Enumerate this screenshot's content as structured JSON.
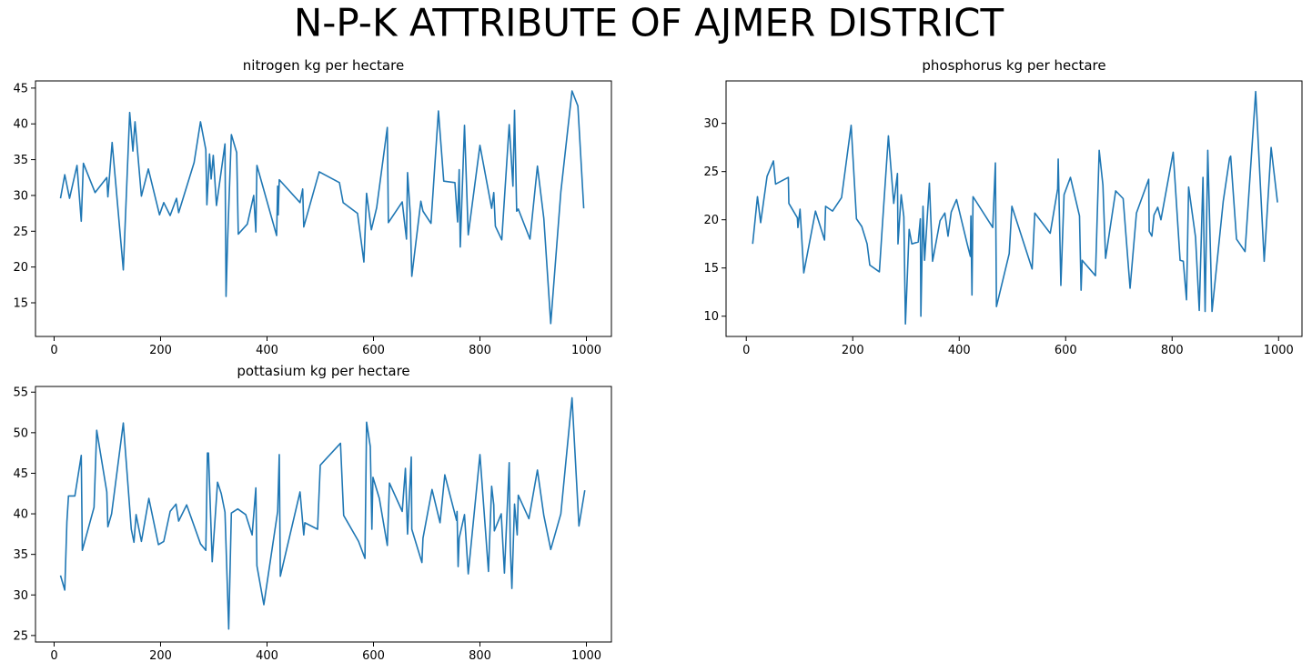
{
  "title": "N-P-K ATTRIBUTE OF AJMER DISTRICT",
  "title_color": "#ee0000",
  "chart_data": [
    {
      "type": "line",
      "title": "nitrogen kg per hectare",
      "color": "#1f77b4",
      "xlim": [
        -35,
        1047
      ],
      "xticks": [
        0,
        200,
        400,
        600,
        800,
        1000
      ],
      "ylim": [
        10.3,
        46.0
      ],
      "yticks": [
        15,
        20,
        25,
        30,
        35,
        40,
        45
      ],
      "x": [
        12,
        20,
        29,
        43,
        51,
        55,
        77,
        99,
        101,
        109,
        130,
        142,
        148,
        152,
        164,
        177,
        198,
        206,
        218,
        230,
        234,
        263,
        275,
        285,
        287,
        292,
        295,
        299,
        305,
        321,
        323,
        326,
        333,
        343,
        346,
        363,
        375,
        379,
        381,
        418,
        420,
        421,
        423,
        462,
        467,
        469,
        498,
        536,
        543,
        570,
        582,
        587,
        596,
        606,
        626,
        628,
        654,
        662,
        664,
        669,
        672,
        689,
        693,
        708,
        722,
        732,
        753,
        758,
        761,
        763,
        771,
        778,
        800,
        822,
        826,
        829,
        841,
        855,
        862,
        865,
        869,
        872,
        894,
        908,
        920,
        933,
        952,
        973,
        984,
        995
      ],
      "values": [
        29.6,
        32.9,
        29.6,
        34.2,
        26.4,
        34.5,
        30.4,
        32.5,
        29.8,
        37.4,
        19.6,
        41.6,
        36.2,
        40.3,
        29.9,
        33.7,
        27.3,
        29.0,
        27.2,
        29.6,
        27.6,
        34.6,
        40.3,
        36.4,
        28.7,
        35.8,
        32.3,
        35.6,
        28.6,
        37.2,
        15.9,
        23.9,
        38.5,
        36.0,
        24.6,
        26.0,
        30.0,
        24.9,
        34.2,
        24.4,
        31.3,
        27.3,
        32.2,
        29.0,
        30.9,
        25.6,
        33.3,
        31.8,
        29.0,
        27.5,
        20.7,
        30.3,
        25.2,
        28.3,
        39.5,
        26.2,
        29.1,
        23.9,
        33.2,
        27.5,
        18.7,
        29.2,
        27.8,
        26.1,
        41.8,
        32.0,
        31.8,
        26.3,
        33.6,
        22.8,
        39.8,
        24.5,
        37.0,
        28.2,
        30.4,
        25.7,
        23.8,
        39.9,
        31.3,
        41.9,
        27.8,
        28.1,
        23.9,
        34.1,
        26.8,
        12.1,
        30.5,
        44.6,
        42.5,
        28.2
      ]
    },
    {
      "type": "line",
      "title": "phosphorus kg per hectare",
      "color": "#1f77b4",
      "xlim": [
        -38,
        1044
      ],
      "xticks": [
        0,
        200,
        400,
        600,
        800,
        1000
      ],
      "ylim": [
        7.9,
        34.4
      ],
      "yticks": [
        10,
        15,
        20,
        25,
        30
      ],
      "x": [
        12,
        21,
        27,
        39,
        51,
        55,
        79,
        80,
        96,
        97,
        101,
        108,
        130,
        147,
        149,
        162,
        179,
        197,
        207,
        217,
        227,
        232,
        250,
        256,
        267,
        277,
        284,
        285,
        291,
        296,
        299,
        306,
        311,
        323,
        327,
        328,
        332,
        335,
        344,
        350,
        364,
        373,
        379,
        385,
        395,
        415,
        421,
        422,
        424,
        426,
        463,
        468,
        470,
        494,
        499,
        537,
        542,
        571,
        585,
        586,
        591,
        597,
        609,
        626,
        629,
        631,
        656,
        663,
        670,
        675,
        694,
        708,
        721,
        733,
        756,
        757,
        762,
        766,
        773,
        779,
        802,
        815,
        821,
        827,
        831,
        844,
        851,
        858,
        862,
        867,
        875,
        896,
        908,
        910,
        921,
        937,
        957,
        973,
        986,
        998
      ],
      "values": [
        17.5,
        22.4,
        19.7,
        24.5,
        26.1,
        23.7,
        24.4,
        21.7,
        20.2,
        19.2,
        21.1,
        14.5,
        20.9,
        17.9,
        21.4,
        20.9,
        22.3,
        29.8,
        20.1,
        19.3,
        17.5,
        15.3,
        14.6,
        19.7,
        28.7,
        21.7,
        24.8,
        17.5,
        22.6,
        20.3,
        9.2,
        19.0,
        17.5,
        17.7,
        20.1,
        10.0,
        21.4,
        15.8,
        23.8,
        15.7,
        19.9,
        20.7,
        18.3,
        20.8,
        22.1,
        17.5,
        16.2,
        20.4,
        12.2,
        22.4,
        19.2,
        25.9,
        11.0,
        16.5,
        21.4,
        14.9,
        20.7,
        18.6,
        23.2,
        26.3,
        13.2,
        22.6,
        24.4,
        20.4,
        12.7,
        15.8,
        14.2,
        27.2,
        23.6,
        16.0,
        23.0,
        22.2,
        12.9,
        20.7,
        24.2,
        18.8,
        18.3,
        20.5,
        21.3,
        20.0,
        27.0,
        15.8,
        15.7,
        11.7,
        23.4,
        18.2,
        10.6,
        24.4,
        10.5,
        27.2,
        10.5,
        21.9,
        26.4,
        26.6,
        18.0,
        16.7,
        33.3,
        15.7,
        27.5,
        21.8
      ]
    },
    {
      "type": "line",
      "title": "pottasium kg per hectare",
      "color": "#1f77b4",
      "xlim": [
        -35,
        1047
      ],
      "xticks": [
        0,
        200,
        400,
        600,
        800,
        1000
      ],
      "ylim": [
        24.2,
        55.7
      ],
      "yticks": [
        25,
        30,
        35,
        40,
        45,
        50,
        55
      ],
      "x": [
        12,
        20,
        24,
        27,
        39,
        51,
        53,
        75,
        80,
        99,
        101,
        108,
        130,
        145,
        150,
        154,
        164,
        178,
        196,
        206,
        218,
        229,
        234,
        249,
        275,
        285,
        288,
        290,
        297,
        307,
        314,
        321,
        328,
        333,
        345,
        360,
        372,
        379,
        381,
        394,
        420,
        423,
        425,
        462,
        469,
        471,
        495,
        500,
        538,
        544,
        572,
        584,
        587,
        594,
        597,
        599,
        611,
        626,
        630,
        654,
        660,
        664,
        671,
        672,
        691,
        693,
        710,
        725,
        734,
        756,
        757,
        759,
        761,
        771,
        778,
        800,
        816,
        822,
        826,
        827,
        840,
        846,
        855,
        857,
        860,
        865,
        870,
        872,
        892,
        908,
        920,
        933,
        952,
        973,
        986,
        997
      ],
      "values": [
        32.4,
        30.6,
        39.0,
        42.2,
        42.2,
        47.2,
        35.5,
        40.8,
        50.3,
        42.7,
        38.4,
        40.0,
        51.2,
        38.1,
        36.5,
        39.9,
        36.6,
        41.9,
        36.2,
        36.6,
        40.3,
        41.2,
        39.1,
        41.1,
        36.3,
        35.5,
        47.5,
        47.5,
        34.1,
        43.9,
        42.5,
        40.2,
        25.8,
        40.1,
        40.6,
        39.9,
        37.4,
        43.2,
        33.6,
        28.8,
        40.3,
        47.3,
        32.3,
        42.7,
        37.4,
        38.9,
        38.1,
        46.0,
        48.7,
        39.8,
        36.6,
        34.5,
        51.3,
        48.3,
        38.1,
        44.5,
        41.9,
        36.1,
        43.8,
        40.3,
        45.6,
        37.5,
        47.0,
        38.1,
        34.0,
        37.0,
        43.0,
        38.9,
        44.8,
        39.2,
        40.3,
        33.5,
        37.0,
        39.9,
        32.6,
        47.3,
        32.9,
        43.4,
        41.1,
        37.9,
        40.0,
        32.7,
        46.3,
        36.0,
        30.8,
        41.2,
        37.4,
        42.3,
        39.4,
        45.4,
        39.8,
        35.6,
        40.0,
        54.3,
        38.5,
        42.9
      ]
    }
  ]
}
